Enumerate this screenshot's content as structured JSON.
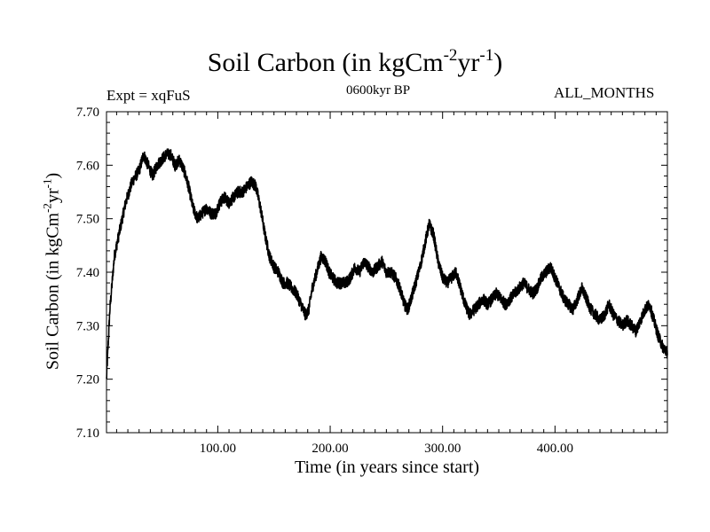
{
  "header": {
    "title_main": "Soil Carbon (in kgCm",
    "title_exp1": "-2",
    "title_mid": "yr",
    "title_exp2": "-1",
    "title_end": ")",
    "experiment": "Expt = xqFuS",
    "period": "0600kyr BP",
    "months": "ALL_MONTHS"
  },
  "chart_data": {
    "type": "line",
    "title": "Soil Carbon (in kgCm-2yr-1)",
    "xlabel": "Time (in years since start)",
    "ylabel": "Soil Carbon (in kgCm-2yr-1)",
    "ylabel_parts": {
      "main": "Soil Carbon (in kgCm",
      "exp1": "-2",
      "mid": "yr",
      "exp2": "-1",
      "end": ")"
    },
    "xlim": [
      1,
      500
    ],
    "ylim": [
      7.1,
      7.7
    ],
    "xticks": [
      100,
      200,
      300,
      400
    ],
    "xtick_labels": [
      "100.00",
      "200.00",
      "300.00",
      "400.00"
    ],
    "yticks": [
      7.1,
      7.2,
      7.3,
      7.4,
      7.5,
      7.6,
      7.7
    ],
    "ytick_labels": [
      "7.10",
      "7.20",
      "7.30",
      "7.40",
      "7.50",
      "7.60",
      "7.70"
    ],
    "grid": false,
    "noise_amplitude": 0.011,
    "series": [
      {
        "name": "Soil Carbon",
        "color": "#000000",
        "x": [
          1,
          4,
          8,
          12,
          18,
          24,
          30,
          34,
          38,
          42,
          46,
          50,
          54,
          58,
          62,
          66,
          70,
          74,
          78,
          82,
          86,
          90,
          94,
          98,
          102,
          106,
          110,
          114,
          118,
          122,
          126,
          130,
          134,
          138,
          142,
          146,
          150,
          154,
          158,
          162,
          166,
          170,
          174,
          178,
          181,
          184,
          188,
          192,
          196,
          199,
          202,
          206,
          210,
          214,
          218,
          222,
          226,
          230,
          234,
          238,
          242,
          246,
          250,
          254,
          258,
          262,
          266,
          269,
          272,
          276,
          280,
          284,
          288,
          292,
          296,
          300,
          304,
          308,
          312,
          316,
          320,
          324,
          328,
          332,
          336,
          340,
          344,
          348,
          352,
          356,
          360,
          364,
          368,
          372,
          376,
          380,
          384,
          388,
          392,
          396,
          400,
          404,
          408,
          412,
          416,
          420,
          424,
          428,
          432,
          436,
          440,
          444,
          448,
          452,
          456,
          460,
          464,
          468,
          472,
          476,
          480,
          484,
          488,
          492,
          496,
          500
        ],
        "values": [
          7.2,
          7.33,
          7.43,
          7.47,
          7.53,
          7.57,
          7.59,
          7.62,
          7.6,
          7.58,
          7.6,
          7.61,
          7.62,
          7.62,
          7.6,
          7.61,
          7.59,
          7.56,
          7.52,
          7.5,
          7.51,
          7.52,
          7.51,
          7.51,
          7.53,
          7.54,
          7.53,
          7.54,
          7.55,
          7.55,
          7.56,
          7.57,
          7.56,
          7.52,
          7.47,
          7.43,
          7.41,
          7.4,
          7.38,
          7.38,
          7.37,
          7.36,
          7.34,
          7.32,
          7.33,
          7.37,
          7.4,
          7.43,
          7.42,
          7.4,
          7.39,
          7.38,
          7.38,
          7.38,
          7.39,
          7.41,
          7.4,
          7.42,
          7.41,
          7.4,
          7.41,
          7.42,
          7.4,
          7.4,
          7.39,
          7.37,
          7.34,
          7.33,
          7.35,
          7.38,
          7.41,
          7.45,
          7.49,
          7.47,
          7.42,
          7.39,
          7.38,
          7.39,
          7.4,
          7.37,
          7.34,
          7.32,
          7.33,
          7.34,
          7.35,
          7.34,
          7.35,
          7.36,
          7.35,
          7.34,
          7.35,
          7.36,
          7.37,
          7.38,
          7.37,
          7.36,
          7.37,
          7.39,
          7.4,
          7.41,
          7.39,
          7.37,
          7.35,
          7.34,
          7.33,
          7.35,
          7.37,
          7.35,
          7.33,
          7.32,
          7.31,
          7.32,
          7.34,
          7.32,
          7.31,
          7.3,
          7.31,
          7.3,
          7.29,
          7.31,
          7.33,
          7.34,
          7.31,
          7.28,
          7.26,
          7.25
        ]
      }
    ]
  }
}
